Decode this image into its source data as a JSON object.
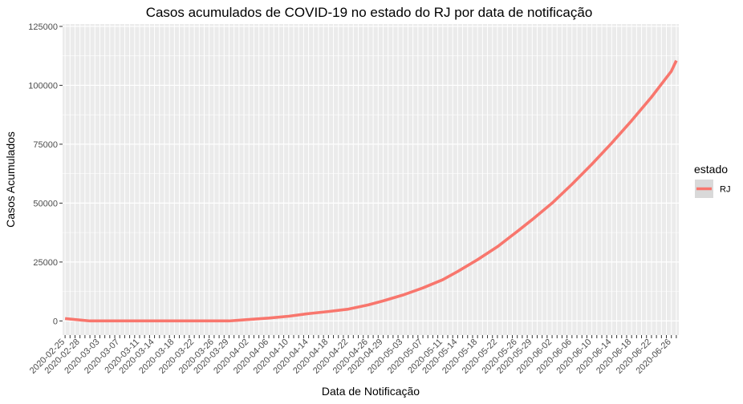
{
  "chart_data": {
    "type": "line",
    "title": "Casos acumulados de COVID-19 no estado do RJ por data de notificação",
    "xlabel": "Data de Notificação",
    "ylabel": "Casos Acumulados",
    "ylim": [
      -6000,
      126000
    ],
    "y_ticks": [
      0,
      25000,
      50000,
      75000,
      100000,
      125000
    ],
    "y_tick_labels": [
      "0",
      "25000",
      "50000",
      "75000",
      "100000",
      "125000"
    ],
    "x_range": [
      "2020-02-25",
      "2020-06-27"
    ],
    "x_tick_labels": [
      "2020-02-25",
      "2020-02-28",
      "2020-03-03",
      "2020-03-07",
      "2020-03-11",
      "2020-03-14",
      "2020-03-18",
      "2020-03-22",
      "2020-03-26",
      "2020-03-29",
      "2020-04-02",
      "2020-04-06",
      "2020-04-10",
      "2020-04-14",
      "2020-04-18",
      "2020-04-22",
      "2020-04-26",
      "2020-04-29",
      "2020-05-03",
      "2020-05-07",
      "2020-05-11",
      "2020-05-14",
      "2020-05-18",
      "2020-05-22",
      "2020-05-26",
      "2020-05-29",
      "2020-06-02",
      "2020-06-06",
      "2020-06-10",
      "2020-06-14",
      "2020-06-18",
      "2020-06-22",
      "2020-06-26"
    ],
    "grid": true,
    "legend": {
      "title": "estado",
      "position": "right"
    },
    "series": [
      {
        "name": "RJ",
        "color": "#F8766D",
        "points": [
          [
            "2020-02-25",
            1000
          ],
          [
            "2020-03-01",
            0
          ],
          [
            "2020-03-29",
            0
          ],
          [
            "2020-04-02",
            600
          ],
          [
            "2020-04-06",
            1200
          ],
          [
            "2020-04-10",
            2000
          ],
          [
            "2020-04-14",
            3100
          ],
          [
            "2020-04-18",
            4000
          ],
          [
            "2020-04-22",
            5000
          ],
          [
            "2020-04-26",
            6800
          ],
          [
            "2020-04-29",
            8500
          ],
          [
            "2020-05-03",
            11000
          ],
          [
            "2020-05-07",
            14000
          ],
          [
            "2020-05-11",
            17500
          ],
          [
            "2020-05-14",
            21000
          ],
          [
            "2020-05-18",
            26000
          ],
          [
            "2020-05-22",
            31500
          ],
          [
            "2020-05-26",
            38000
          ],
          [
            "2020-05-29",
            43000
          ],
          [
            "2020-06-02",
            50000
          ],
          [
            "2020-06-06",
            58000
          ],
          [
            "2020-06-10",
            66500
          ],
          [
            "2020-06-14",
            75500
          ],
          [
            "2020-06-18",
            85000
          ],
          [
            "2020-06-22",
            95000
          ],
          [
            "2020-06-26",
            106000
          ],
          [
            "2020-06-27",
            110500
          ]
        ]
      }
    ]
  }
}
